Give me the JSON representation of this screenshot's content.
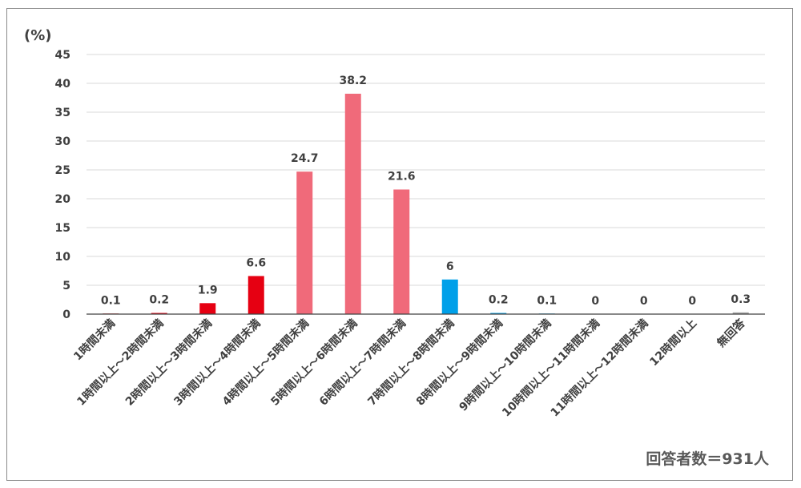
{
  "respondents_label": "回答者数＝931人",
  "chart_data": {
    "type": "bar",
    "ylabel": "(%)",
    "ylim": [
      0,
      45
    ],
    "yticks": [
      0,
      5,
      10,
      15,
      20,
      25,
      30,
      35,
      40,
      45
    ],
    "grid": true,
    "categories": [
      "1時間未満",
      "1時間以上～2時間未満",
      "2時間以上～3時間未満",
      "3時間以上～4時間未満",
      "4時間以上～5時間未満",
      "5時間以上～6時間未満",
      "6時間以上～7時間未満",
      "7時間以上～8時間未満",
      "8時間以上～9時間未満",
      "9時間以上～10時間未満",
      "10時間以上～11時間未満",
      "11時間以上～12時間未満",
      "12時間以上",
      "無回答"
    ],
    "values": [
      0.1,
      0.2,
      1.9,
      6.6,
      24.7,
      38.2,
      21.6,
      6,
      0.2,
      0.1,
      0,
      0,
      0,
      0.3
    ],
    "value_labels": [
      "0.1",
      "0.2",
      "1.9",
      "6.6",
      "24.7",
      "38.2",
      "21.6",
      "6",
      "0.2",
      "0.1",
      "0",
      "0",
      "0",
      "0.3"
    ],
    "colors": [
      "#c00000",
      "#e60012",
      "#e60012",
      "#e60012",
      "#f06a7a",
      "#f06a7a",
      "#f06a7a",
      "#00a0e9",
      "#00a0e9",
      "#00a0e9",
      "#00a0e9",
      "#00a0e9",
      "#00a0e9",
      "#a6a6a6"
    ],
    "axis_color": "#404040",
    "grid_color": "#d9d9d9"
  }
}
